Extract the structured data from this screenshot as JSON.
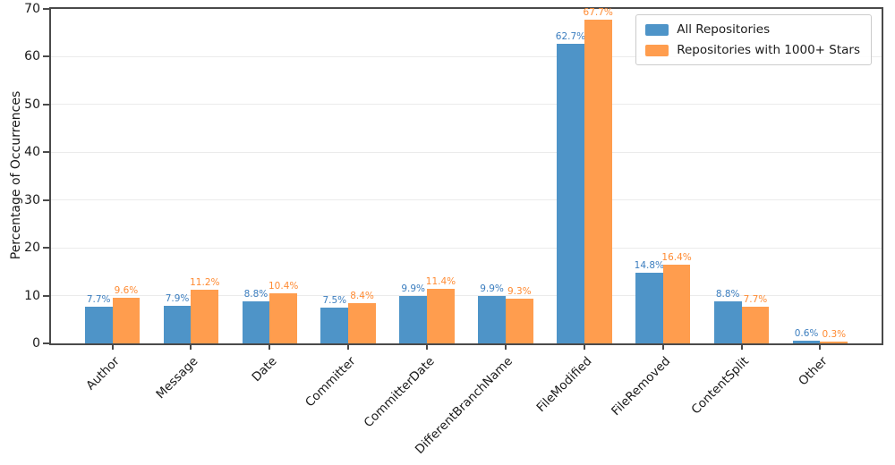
{
  "chart_data": {
    "type": "bar",
    "title": "",
    "xlabel": "",
    "ylabel": "Percentage of Occurrences",
    "ylim": [
      0,
      70
    ],
    "yticks": [
      0,
      10,
      20,
      30,
      40,
      50,
      60,
      70
    ],
    "grid": true,
    "legend_position": "upper right",
    "value_label_suffix": "%",
    "categories": [
      "Author",
      "Message",
      "Date",
      "Committer",
      "CommitterDate",
      "DifferentBranchName",
      "FileModified",
      "FileRemoved",
      "ContentSplit",
      "Other"
    ],
    "series": [
      {
        "name": "All Repositories",
        "color": "#4e94c8",
        "label_color": "#3c7ebf",
        "values": [
          7.7,
          7.9,
          8.8,
          7.5,
          9.9,
          9.9,
          62.7,
          14.8,
          8.8,
          0.6
        ]
      },
      {
        "name": "Repositories with 1000+ Stars",
        "color": "#ff9d4e",
        "label_color": "#ff8b33",
        "values": [
          9.6,
          11.2,
          10.4,
          8.4,
          11.4,
          9.3,
          67.7,
          16.4,
          7.7,
          0.3
        ]
      }
    ]
  }
}
